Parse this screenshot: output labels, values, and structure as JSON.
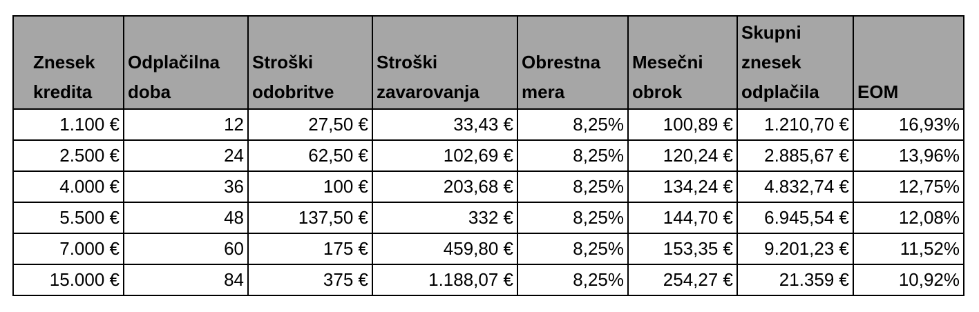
{
  "table": {
    "headers": [
      "Znesek kredita",
      "Odplačilna doba",
      "Stroški odobritve",
      "Stroški zavarovanja",
      "Obrestna mera",
      "Mesečni obrok",
      "Skupni znesek odplačila",
      "EOM"
    ],
    "rows": [
      [
        "1.100 €",
        "12",
        "27,50 €",
        "33,43 €",
        "8,25%",
        "100,89 €",
        "1.210,70 €",
        "16,93%"
      ],
      [
        "2.500 €",
        "24",
        "62,50 €",
        "102,69 €",
        "8,25%",
        "120,24 €",
        "2.885,67 €",
        "13,96%"
      ],
      [
        "4.000 €",
        "36",
        "100 €",
        "203,68 €",
        "8,25%",
        "134,24 €",
        "4.832,74 €",
        "12,75%"
      ],
      [
        "5.500 €",
        "48",
        "137,50 €",
        "332 €",
        "8,25%",
        "144,70 €",
        "6.945,54 €",
        "12,08%"
      ],
      [
        "7.000 €",
        "60",
        "175 €",
        "459,80 €",
        "8,25%",
        "153,35 €",
        "9.201,23 €",
        "11,52%"
      ],
      [
        "15.000 €",
        "84",
        "375 €",
        "1.188,07 €",
        "8,25%",
        "254,27 €",
        "21.359 €",
        "10,92%"
      ]
    ]
  }
}
